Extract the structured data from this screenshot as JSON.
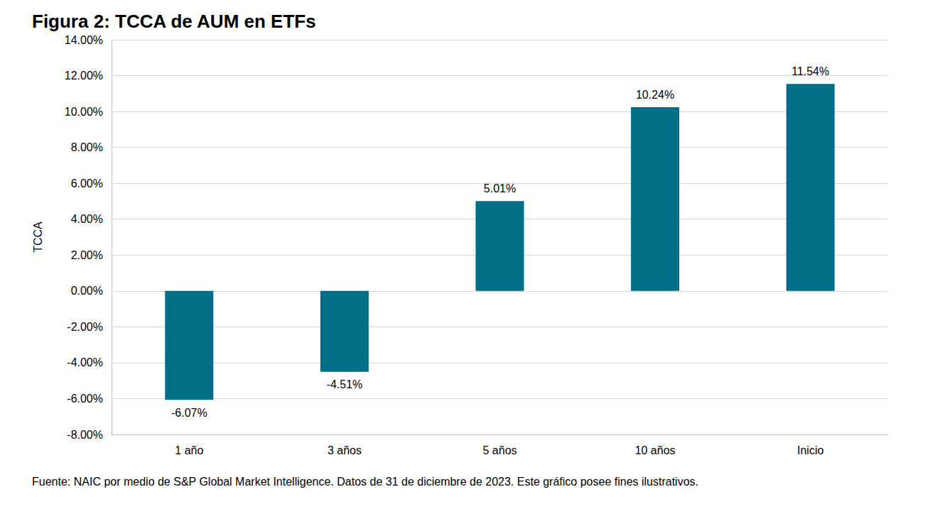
{
  "chart_data": {
    "type": "bar",
    "title": "Figura 2: TCCA de AUM en ETFs",
    "y_label": "TCCA",
    "source": "Fuente: NAIC por medio de S&P Global Market Intelligence. Datos de 31 de diciembre de 2023. Este gráfico posee fines ilustrativos.",
    "categories": [
      "1 año",
      "3 años",
      "5 años",
      "10 años",
      "Inicio"
    ],
    "values": [
      -6.07,
      -4.51,
      5.01,
      10.24,
      11.54
    ],
    "value_labels": [
      "-6.07%",
      "-4.51%",
      "5.01%",
      "10.24%",
      "11.54%"
    ],
    "color": "#006e87",
    "ylim": [
      -8,
      14
    ],
    "yticks": [
      {
        "value": -8,
        "label": "-8.00%"
      },
      {
        "value": -6,
        "label": "-6.00%"
      },
      {
        "value": -4,
        "label": "-4.00%"
      },
      {
        "value": -2,
        "label": "-2.00%"
      },
      {
        "value": 0,
        "label": "0.00%"
      },
      {
        "value": 2,
        "label": "2.00%"
      },
      {
        "value": 4,
        "label": "4.00%"
      },
      {
        "value": 6,
        "label": "6.00%"
      },
      {
        "value": 8,
        "label": "8.00%"
      },
      {
        "value": 10,
        "label": "10.00%"
      },
      {
        "value": 12,
        "label": "12.00%"
      },
      {
        "value": 14,
        "label": "14.00%"
      }
    ],
    "grid": true,
    "data_labels": true
  }
}
